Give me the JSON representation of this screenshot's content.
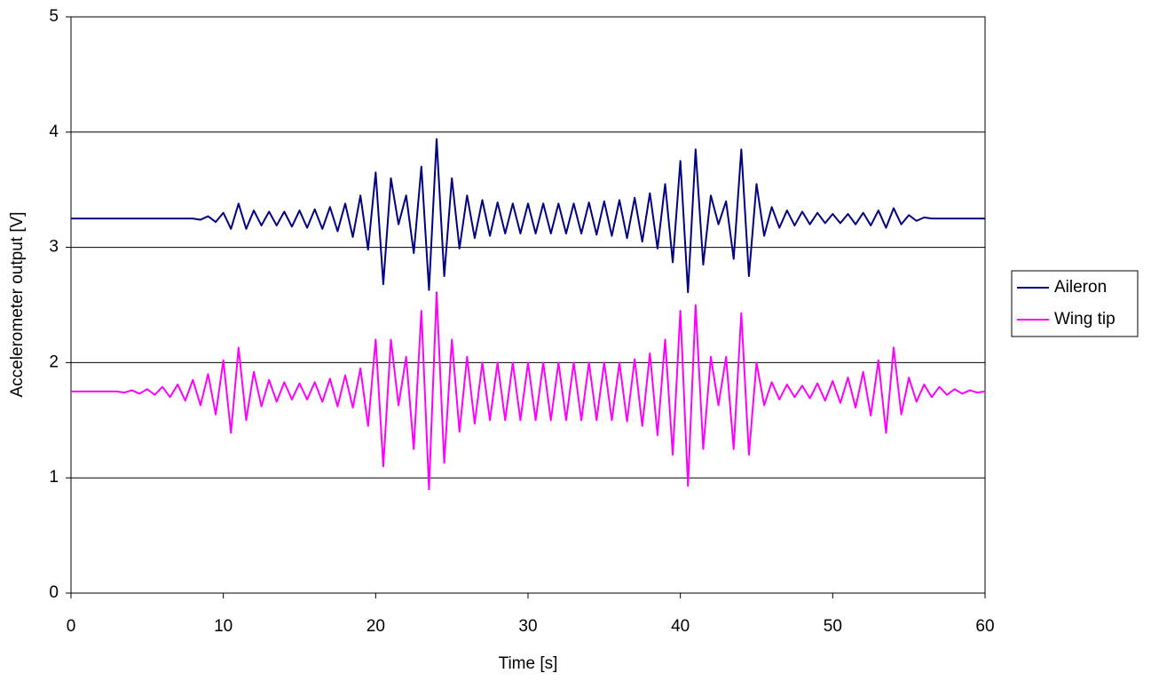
{
  "chart_data": {
    "type": "line",
    "x_label": "Time [s]",
    "y_label": "Accelerometer output [V]",
    "xlim": [
      0,
      60
    ],
    "xticks": [
      0,
      10,
      20,
      30,
      40,
      50,
      60
    ],
    "ylim": [
      0,
      5
    ],
    "yticks": [
      0,
      1,
      2,
      3,
      4,
      5
    ],
    "grid": true,
    "legend": "right",
    "x": [
      0,
      0.5,
      1,
      1.5,
      2,
      2.5,
      3,
      3.5,
      4,
      4.5,
      5,
      5.5,
      6,
      6.5,
      7,
      7.5,
      8,
      8.5,
      9,
      9.5,
      10,
      10.5,
      11,
      11.5,
      12,
      12.5,
      13,
      13.5,
      14,
      14.5,
      15,
      15.5,
      16,
      16.5,
      17,
      17.5,
      18,
      18.5,
      19,
      19.5,
      20,
      20.5,
      21,
      21.5,
      22,
      22.5,
      23,
      23.5,
      24,
      24.5,
      25,
      25.5,
      26,
      26.5,
      27,
      27.5,
      28,
      28.5,
      29,
      29.5,
      30,
      30.5,
      31,
      31.5,
      32,
      32.5,
      33,
      33.5,
      34,
      34.5,
      35,
      35.5,
      36,
      36.5,
      37,
      37.5,
      38,
      38.5,
      39,
      39.5,
      40,
      40.5,
      41,
      41.5,
      42,
      42.5,
      43,
      43.5,
      44,
      44.5,
      45,
      45.5,
      46,
      46.5,
      47,
      47.5,
      48,
      48.5,
      49,
      49.5,
      50,
      50.5,
      51,
      51.5,
      52,
      52.5,
      53,
      53.5,
      54,
      54.5,
      55,
      55.5,
      56,
      56.5,
      57,
      57.5,
      58,
      58.5,
      59,
      59.5,
      60
    ],
    "series": [
      {
        "name": "Aileron",
        "color": "#000080",
        "values": [
          3.25,
          3.25,
          3.25,
          3.25,
          3.25,
          3.25,
          3.25,
          3.25,
          3.25,
          3.25,
          3.25,
          3.25,
          3.25,
          3.25,
          3.25,
          3.25,
          3.25,
          3.24,
          3.27,
          3.22,
          3.3,
          3.16,
          3.38,
          3.16,
          3.32,
          3.19,
          3.31,
          3.19,
          3.31,
          3.18,
          3.32,
          3.17,
          3.33,
          3.16,
          3.35,
          3.14,
          3.38,
          3.09,
          3.45,
          2.98,
          3.65,
          2.68,
          3.6,
          3.2,
          3.45,
          2.95,
          3.7,
          2.63,
          3.94,
          2.75,
          3.6,
          2.99,
          3.45,
          3.08,
          3.41,
          3.1,
          3.39,
          3.12,
          3.38,
          3.12,
          3.38,
          3.12,
          3.38,
          3.12,
          3.38,
          3.12,
          3.38,
          3.12,
          3.39,
          3.11,
          3.4,
          3.1,
          3.41,
          3.08,
          3.43,
          3.05,
          3.47,
          2.99,
          3.55,
          2.87,
          3.75,
          2.61,
          3.85,
          2.85,
          3.45,
          3.2,
          3.4,
          2.9,
          3.85,
          2.75,
          3.55,
          3.1,
          3.35,
          3.17,
          3.32,
          3.19,
          3.31,
          3.2,
          3.3,
          3.21,
          3.29,
          3.21,
          3.29,
          3.2,
          3.3,
          3.19,
          3.32,
          3.17,
          3.34,
          3.2,
          3.28,
          3.23,
          3.26,
          3.25,
          3.25,
          3.25,
          3.25,
          3.25,
          3.25,
          3.25,
          3.25
        ]
      },
      {
        "name": "Wing tip",
        "color": "#ff00ff",
        "values": [
          1.75,
          1.75,
          1.75,
          1.75,
          1.75,
          1.75,
          1.75,
          1.74,
          1.76,
          1.73,
          1.77,
          1.72,
          1.79,
          1.7,
          1.81,
          1.67,
          1.85,
          1.63,
          1.9,
          1.55,
          2.02,
          1.39,
          2.13,
          1.5,
          1.92,
          1.62,
          1.85,
          1.66,
          1.83,
          1.68,
          1.82,
          1.68,
          1.83,
          1.66,
          1.86,
          1.62,
          1.89,
          1.61,
          1.95,
          1.45,
          2.2,
          1.1,
          2.2,
          1.63,
          2.05,
          1.25,
          2.45,
          0.9,
          2.61,
          1.13,
          2.2,
          1.4,
          2.05,
          1.47,
          2.0,
          1.5,
          2.0,
          1.5,
          2.0,
          1.5,
          2.0,
          1.5,
          2.0,
          1.5,
          2.0,
          1.5,
          2.0,
          1.5,
          2.0,
          1.5,
          2.0,
          1.5,
          2.0,
          1.49,
          2.03,
          1.45,
          2.08,
          1.37,
          2.2,
          1.2,
          2.45,
          0.93,
          2.5,
          1.25,
          2.05,
          1.63,
          2.05,
          1.25,
          2.43,
          1.2,
          2.0,
          1.63,
          1.83,
          1.68,
          1.81,
          1.7,
          1.8,
          1.69,
          1.82,
          1.67,
          1.84,
          1.65,
          1.87,
          1.61,
          1.92,
          1.54,
          2.02,
          1.39,
          2.13,
          1.55,
          1.87,
          1.66,
          1.81,
          1.7,
          1.79,
          1.72,
          1.77,
          1.73,
          1.76,
          1.74,
          1.75
        ]
      }
    ]
  }
}
